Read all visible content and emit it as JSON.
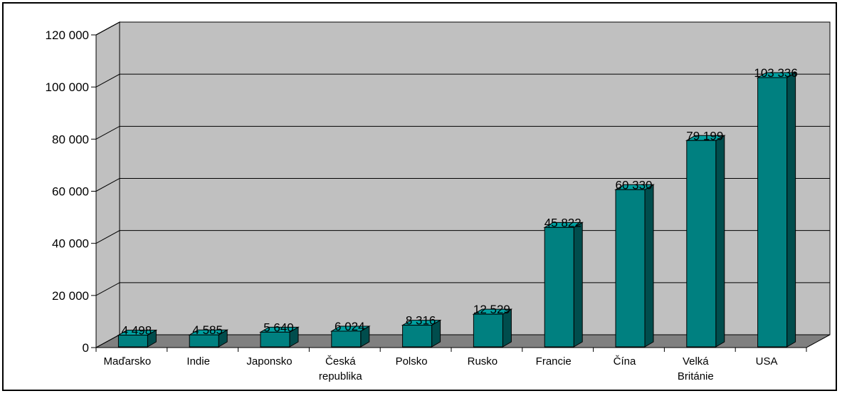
{
  "chart_data": {
    "type": "bar",
    "style": "3d-column",
    "title": "",
    "xlabel": "",
    "ylabel": "",
    "categories": [
      [
        "Maďarsko"
      ],
      [
        "Indie"
      ],
      [
        "Japonsko"
      ],
      [
        "Česká",
        "republika"
      ],
      [
        "Polsko"
      ],
      [
        "Rusko"
      ],
      [
        "Francie"
      ],
      [
        "Čína"
      ],
      [
        "Velká",
        "Británie"
      ],
      [
        "USA"
      ]
    ],
    "values": [
      4498,
      4585,
      5640,
      6024,
      8316,
      12529,
      45822,
      60330,
      79199,
      103336
    ],
    "value_labels": [
      "4 498",
      "4 585",
      "5 640",
      "6 024",
      "8 316",
      "12 529",
      "45 822",
      "60 330",
      "79 199",
      "103 336"
    ],
    "ylim": [
      0,
      120000
    ],
    "yticks": [
      0,
      20000,
      40000,
      60000,
      80000,
      100000,
      120000
    ],
    "ytick_labels": [
      "0",
      "20 000",
      "40 000",
      "60 000",
      "80 000",
      "100 000",
      "120 000"
    ],
    "grid": true,
    "legend": "none",
    "colors": {
      "wall": "#c0c0c0",
      "floor": "#808080",
      "bar_front": "#008080",
      "bar_top": "#00a0a0",
      "bar_side": "#004d4d"
    }
  }
}
